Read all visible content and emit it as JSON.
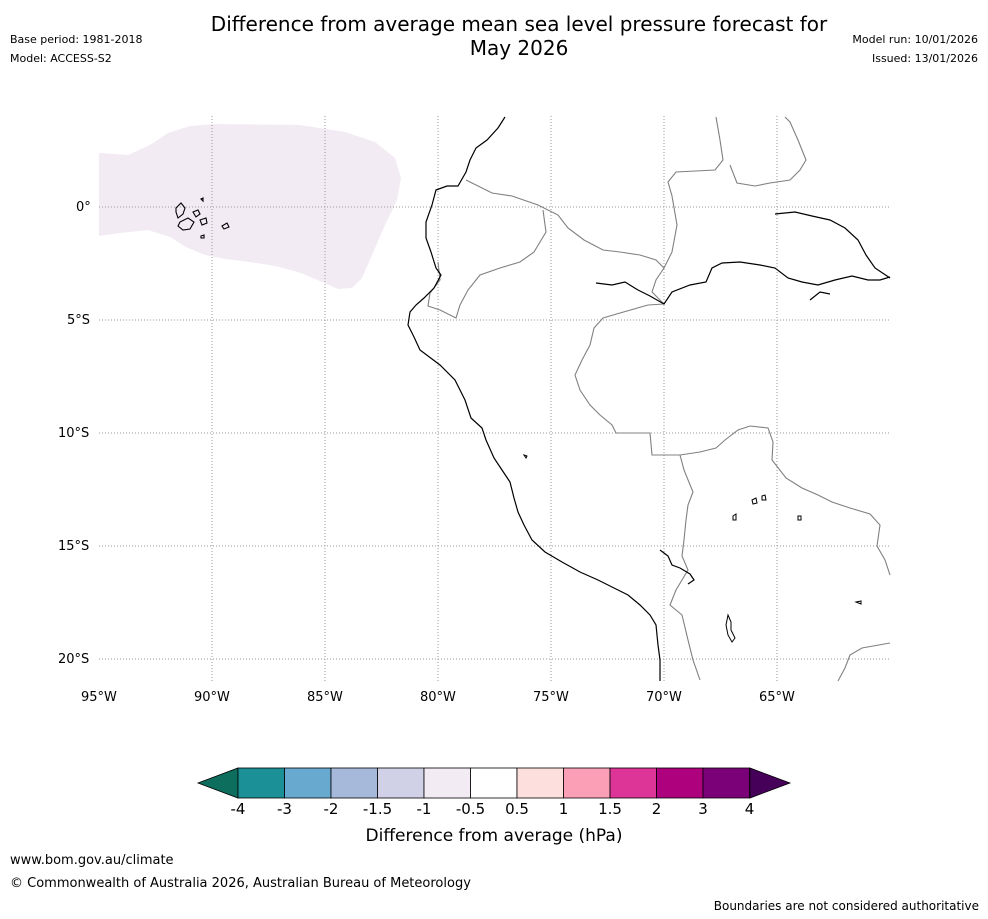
{
  "header": {
    "title_line1": "Difference from average mean sea level pressure forecast for",
    "title_line2": "May 2026",
    "base_period": "Base period: 1981-2018",
    "model": "Model: ACCESS-S2",
    "model_run": "Model run: 10/01/2026",
    "issued": "Issued: 13/01/2026"
  },
  "map": {
    "lon_ticks": [
      "95°W",
      "90°W",
      "85°W",
      "80°W",
      "75°W",
      "70°W",
      "65°W"
    ],
    "lat_ticks": [
      "0°",
      "5°S",
      "10°S",
      "15°S",
      "20°S"
    ],
    "lon_range": [
      -95,
      -60
    ],
    "lat_range": [
      4,
      -21
    ],
    "anomaly_region": {
      "description_class": "-1 to -0.5",
      "color": "#f2ebf3"
    },
    "coast_color": "#000000",
    "border_color": "#808080",
    "grid_color": "#999999"
  },
  "colorbar": {
    "label": "Difference from average (hPa)",
    "tick_labels": [
      "-4",
      "-3",
      "-2",
      "-1.5",
      "-1",
      "-0.5",
      "0.5",
      "1",
      "1.5",
      "2",
      "3",
      "4"
    ],
    "low_extend_color": "#0d6e5e",
    "high_extend_color": "#46005a",
    "colors": [
      "#1b9197",
      "#67a9cf",
      "#a6b9db",
      "#d0d1e6",
      "#f2ebf3",
      "#ffffff",
      "#fde0dd",
      "#fa9fb5",
      "#dd3497",
      "#ae017e",
      "#7a0177"
    ]
  },
  "footer": {
    "url": "www.bom.gov.au/climate",
    "copyright": "© Commonwealth of Australia 2026, Australian Bureau of Meteorology",
    "disclaimer": "Boundaries are not considered authoritative"
  }
}
